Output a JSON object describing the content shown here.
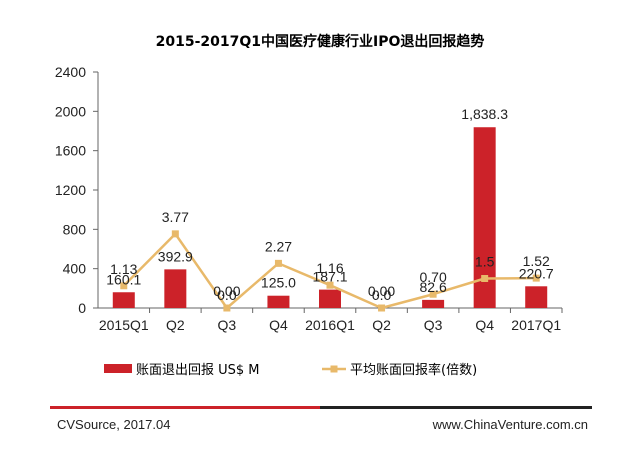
{
  "chart_data": {
    "type": "bar",
    "title": "2015-2017Q1中国医疗健康行业IPO退出回报趋势",
    "categories": [
      "2015Q1",
      "Q2",
      "Q3",
      "Q4",
      "2016Q1",
      "Q2",
      "Q3",
      "Q4",
      "2017Q1"
    ],
    "ylim": [
      0,
      2400
    ],
    "yticks": [
      "0",
      "400",
      "800",
      "1200",
      "1600",
      "2000",
      "2400"
    ],
    "series": [
      {
        "name": "账面退出回报 US$ M",
        "type": "bar",
        "color": "#cc2229",
        "values": [
          160.1,
          392.9,
          0.0,
          125.0,
          187.1,
          0.0,
          82.6,
          1838.3,
          220.7
        ],
        "labels": [
          "160.1",
          "392.9",
          "0.0",
          "125.0",
          "187.1",
          "0.0",
          "82.6",
          "1,838.3",
          "220.7"
        ]
      },
      {
        "name": "平均账面回报率(倍数)",
        "type": "line",
        "color": "#e8b96a",
        "values": [
          1.13,
          3.77,
          0.0,
          2.27,
          1.16,
          0.0,
          0.7,
          1.5,
          1.52
        ],
        "labels": [
          "1.13",
          "3.77",
          "0.00",
          "2.27",
          "1.16",
          "0.00",
          "0.70",
          "1.5",
          "1.52"
        ]
      }
    ],
    "grid": false,
    "legend_position": "bottom"
  },
  "footer": {
    "source": "CVSource, 2017.04",
    "website": "www.ChinaVenture.com.cn",
    "line_colors": [
      "#cc2229",
      "#222222"
    ]
  }
}
